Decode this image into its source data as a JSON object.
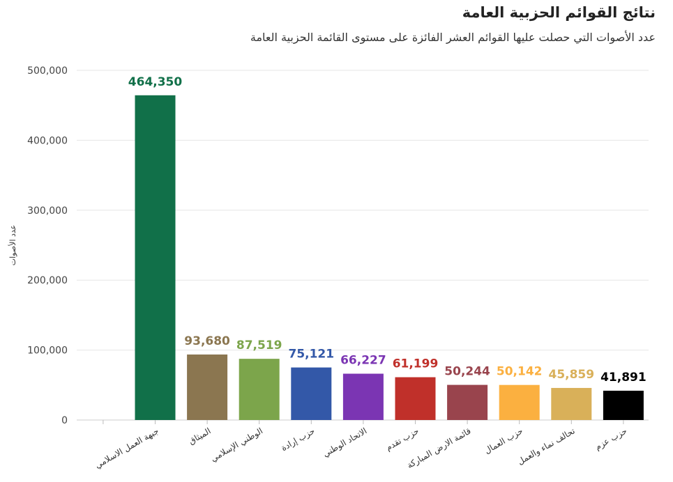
{
  "header": {
    "title": "نتائج القوائم الحزبية العامة",
    "subtitle": "عدد الأصوات التي حصلت عليها القوائم العشر الفائزة على مستوى القائمة الحزبية العامة"
  },
  "chart_data": {
    "type": "bar",
    "title": "نتائج القوائم الحزبية العامة",
    "subtitle": "عدد الأصوات التي حصلت عليها القوائم العشر الفائزة على مستوى القائمة الحزبية العامة",
    "xlabel": "",
    "ylabel": "عدد الأصوات",
    "ylim": [
      0,
      500000
    ],
    "yticks": [
      0,
      100000,
      200000,
      300000,
      400000,
      500000
    ],
    "ytick_labels": [
      "0",
      "100,000",
      "200,000",
      "300,000",
      "400,000",
      "500,000"
    ],
    "grid": true,
    "categories": [
      "جبهة العمل الاسلامي",
      "الميثاق",
      "الوطني الإسلامي",
      "حزب إرادة",
      "الاتحاد الوطني",
      "حزب تقدم",
      "قائمة الارض المباركة",
      "حزب العمال",
      "تحالف نماء والعمل",
      "حزب عزم"
    ],
    "values": [
      464350,
      93680,
      87519,
      75121,
      66227,
      61199,
      50244,
      50142,
      45859,
      41891
    ],
    "value_labels": [
      "464,350",
      "93,680",
      "87,519",
      "75,121",
      "66,227",
      "61,199",
      "50,244",
      "50,142",
      "45,859",
      "41,891"
    ],
    "colors": [
      "#117049",
      "#8b7650",
      "#7ca54b",
      "#3358a8",
      "#7b35b3",
      "#c0302a",
      "#99444d",
      "#fbb040",
      "#d9b059",
      "#000000"
    ]
  }
}
